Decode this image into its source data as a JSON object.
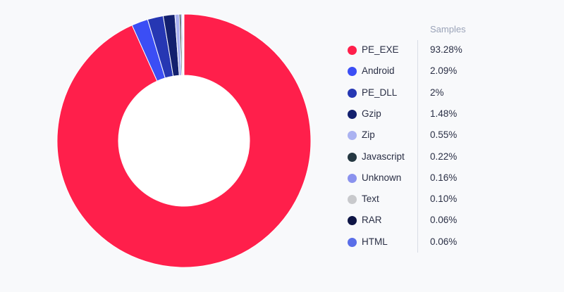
{
  "chart_data": {
    "type": "pie",
    "variant": "donut",
    "value_column_header": "Samples",
    "categories": [
      "PE_EXE",
      "Android",
      "PE_DLL",
      "Gzip",
      "Zip",
      "Javascript",
      "Unknown",
      "Text",
      "RAR",
      "HTML"
    ],
    "values": [
      93.28,
      2.09,
      2,
      1.48,
      0.55,
      0.22,
      0.16,
      0.1,
      0.06,
      0.06
    ],
    "value_labels": [
      "93.28%",
      "2.09%",
      "2%",
      "1.48%",
      "0.55%",
      "0.22%",
      "0.16%",
      "0.10%",
      "0.06%",
      "0.06%"
    ],
    "colors": [
      "#ff1f4b",
      "#3b4ef5",
      "#2637b3",
      "#13206e",
      "#aab2f1",
      "#253842",
      "#8a92ee",
      "#c8c9cc",
      "#0e1545",
      "#5a6ee8"
    ],
    "legend_position": "right"
  }
}
